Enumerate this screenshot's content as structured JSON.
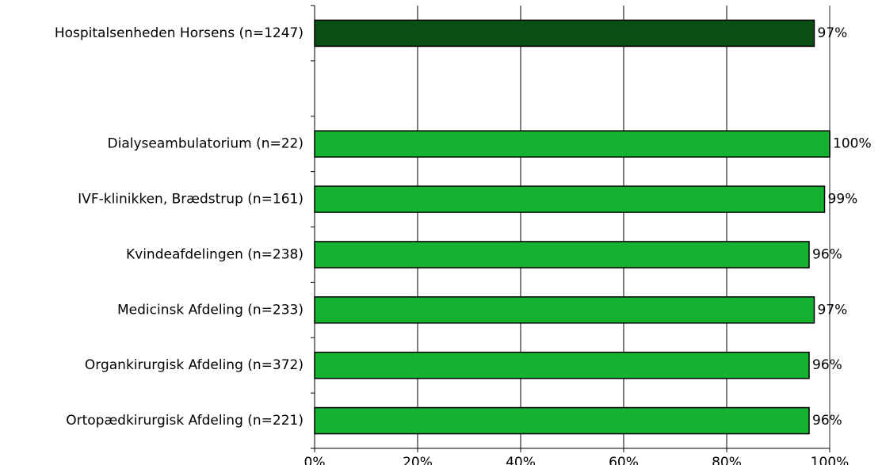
{
  "chart_data": {
    "type": "bar",
    "orientation": "horizontal",
    "title": "",
    "xlabel": "",
    "ylabel": "",
    "xlim": [
      0,
      100
    ],
    "x_ticks": [
      "0%",
      "20%",
      "40%",
      "60%",
      "80%",
      "100%"
    ],
    "grid": true,
    "legend": "none",
    "categories": [
      "Hospitalsenheden Horsens (n=1247)",
      "",
      "Dialyseambulatorium (n=22)",
      "IVF-klinikken, Brædstrup (n=161)",
      "Kvindeafdelingen (n=238)",
      "Medicinsk Afdeling (n=233)",
      "Organkirurgisk Afdeling (n=372)",
      "Ortopædkirurgisk Afdeling (n=221)"
    ],
    "values": [
      97,
      null,
      100,
      99,
      96,
      97,
      96,
      96
    ],
    "value_labels": [
      "97%",
      "",
      "100%",
      "99%",
      "96%",
      "97%",
      "96%",
      "96%"
    ],
    "bar_colors": [
      "#0a4f14",
      null,
      "#15b232",
      "#15b232",
      "#15b232",
      "#15b232",
      "#15b232",
      "#15b232"
    ],
    "colors": {
      "total": "#0a4f14",
      "unit": "#15b232",
      "outline": "#000000",
      "grid": "#000000",
      "right_border": "#909090"
    }
  }
}
